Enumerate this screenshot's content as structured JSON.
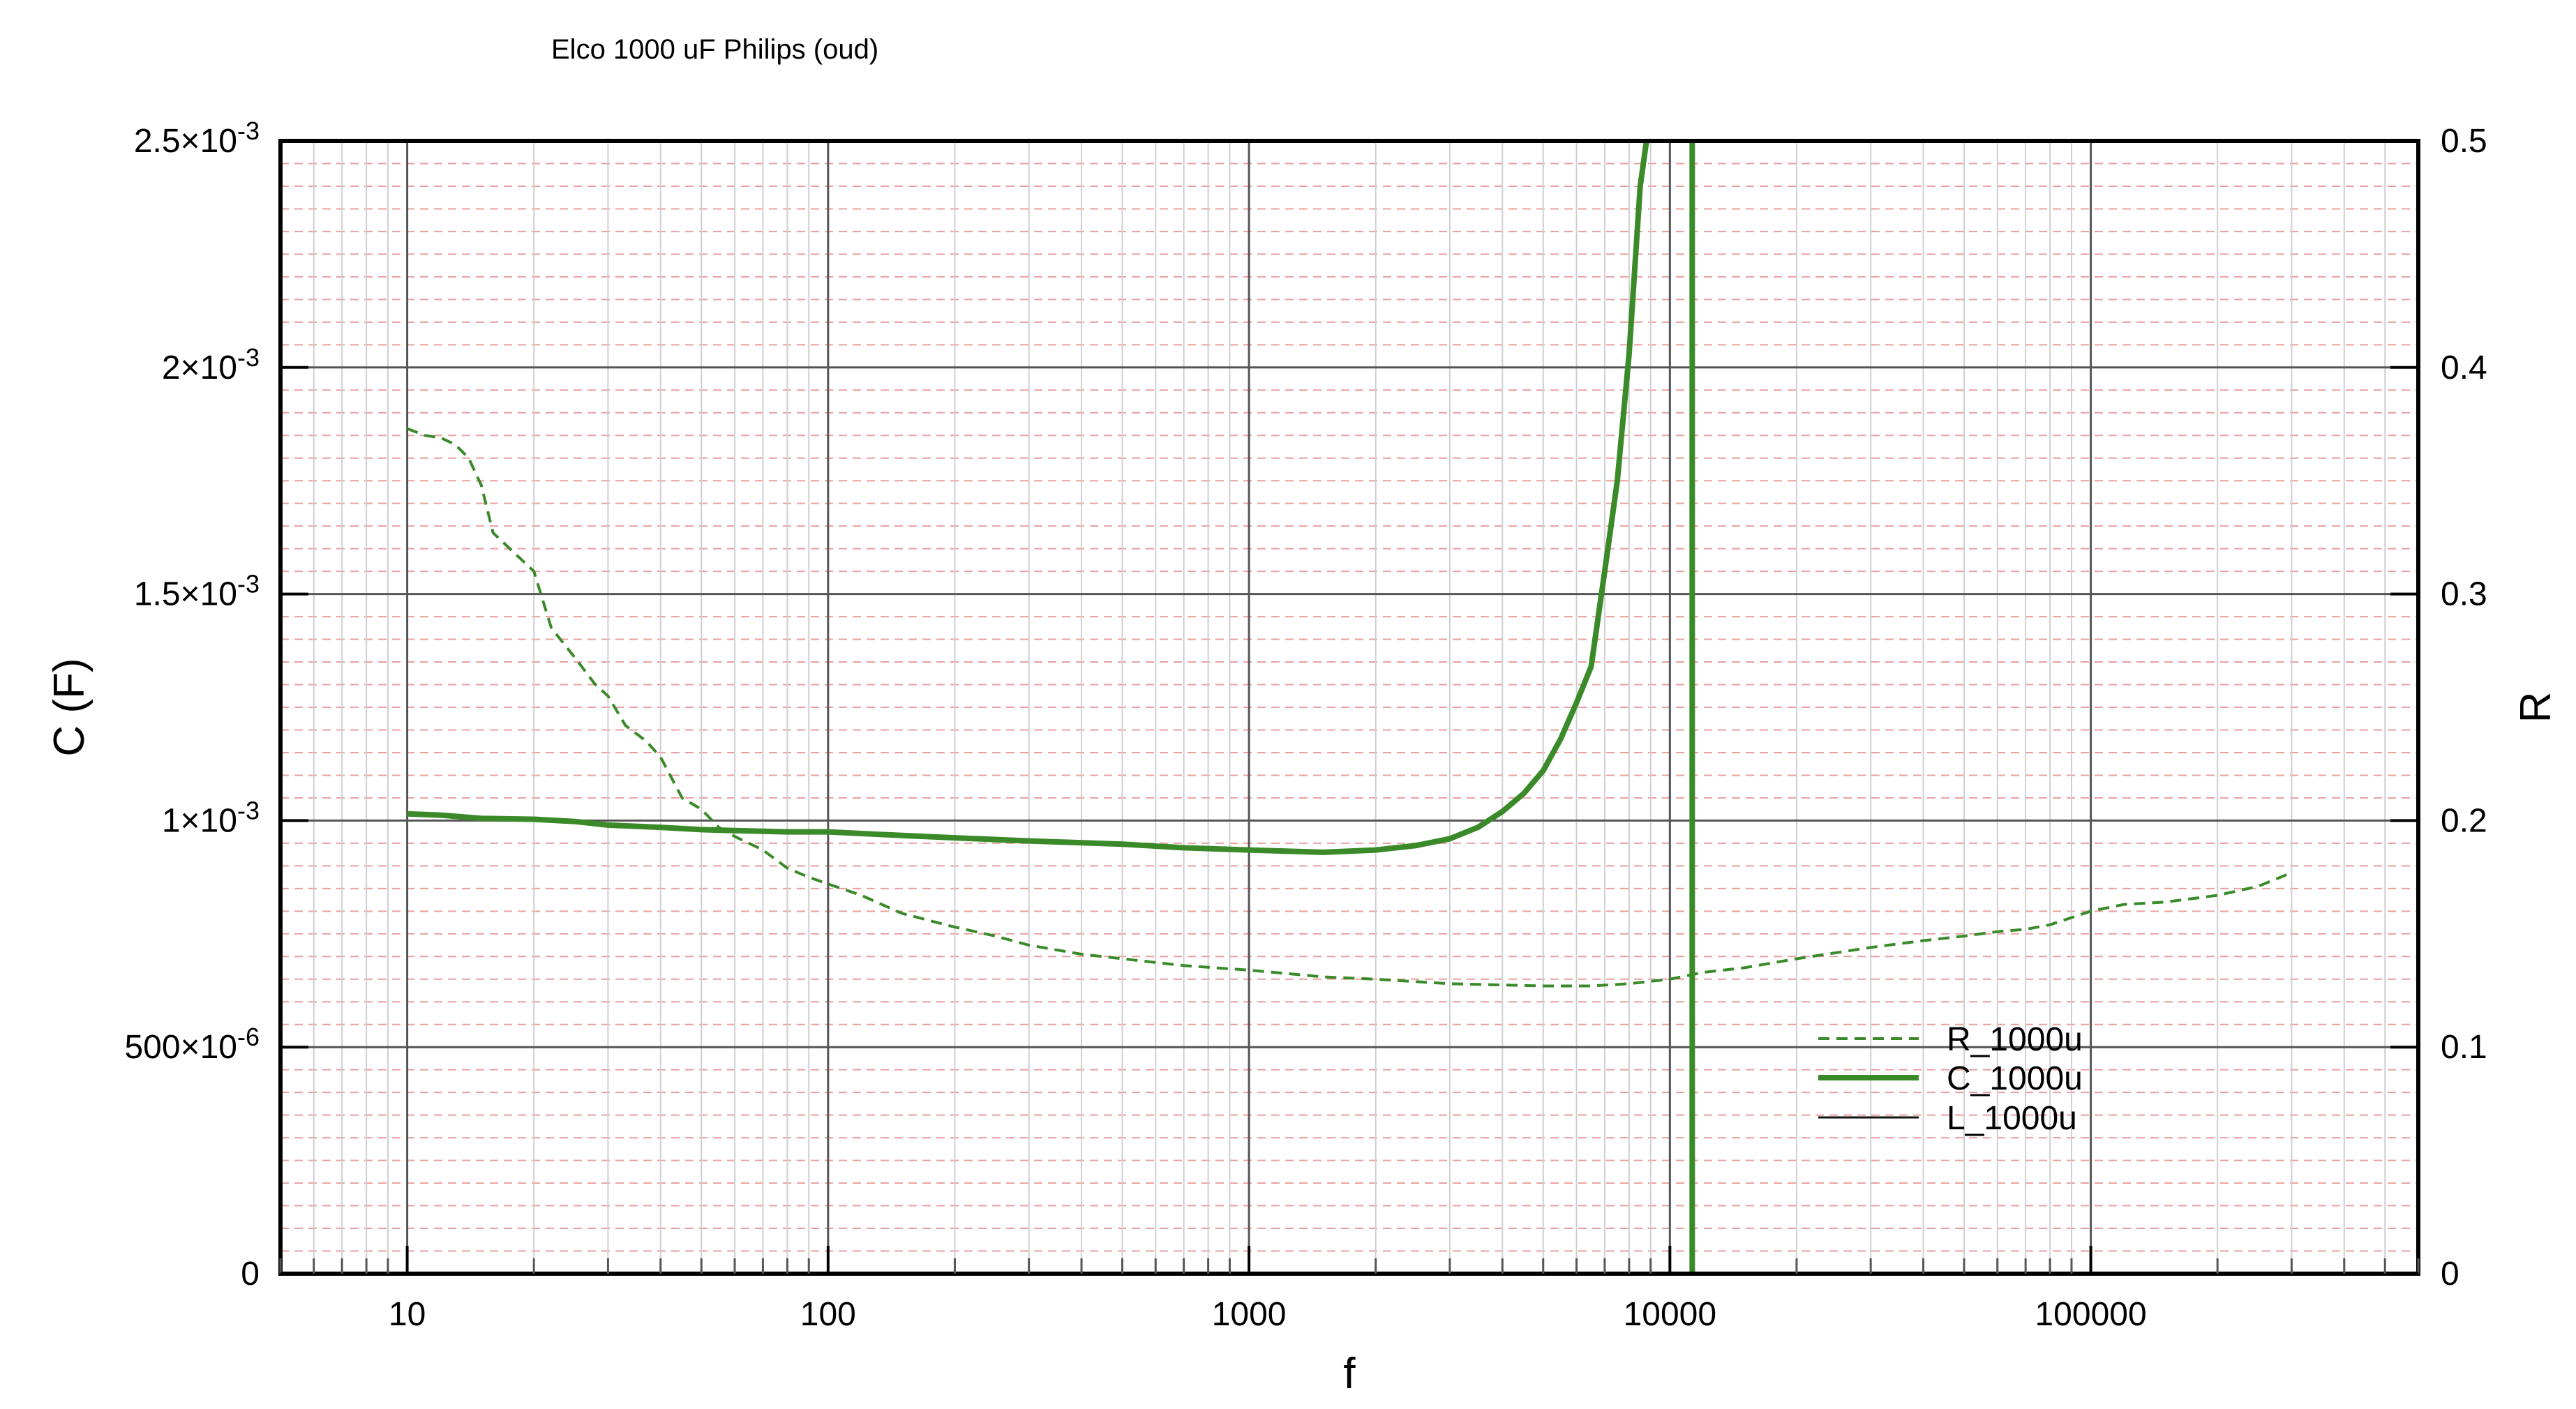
{
  "chart_data": {
    "type": "line",
    "title": "Elco 1000 uF Philips (oud)",
    "xlabel": "f",
    "ylabel": "C (F)",
    "y2label": "R",
    "x_scale": "log",
    "xlim": [
      5,
      600000
    ],
    "ylim": [
      0,
      0.0025
    ],
    "y2lim": [
      0,
      0.5
    ],
    "x_tick_labels": [
      "10",
      "100",
      "1000",
      "10000",
      "100000"
    ],
    "y_tick_labels": [
      {
        "base": "0",
        "exp": ""
      },
      {
        "base": "500×10",
        "exp": "-6"
      },
      {
        "base": "1×10",
        "exp": "-3"
      },
      {
        "base": "1.5×10",
        "exp": "-3"
      },
      {
        "base": "2×10",
        "exp": "-3"
      },
      {
        "base": "2.5×10",
        "exp": "-3"
      }
    ],
    "y2_tick_labels": [
      "0",
      "0.1",
      "0.2",
      "0.3",
      "0.4",
      "0.5"
    ],
    "grid": true,
    "legend_position": "bottom-right",
    "series": [
      {
        "name": "R_1000u",
        "axis": "right",
        "style": "dashed",
        "color": "#3a8a2a",
        "x": [
          10,
          11,
          12,
          13,
          14,
          15,
          16,
          18,
          20,
          22,
          25,
          28,
          30,
          33,
          37,
          40,
          45,
          50,
          55,
          60,
          70,
          80,
          90,
          100,
          120,
          150,
          200,
          250,
          300,
          400,
          500,
          700,
          1000,
          1500,
          2000,
          3000,
          5000,
          6500,
          8000,
          10000,
          12000,
          15000,
          20000,
          30000,
          40000,
          50000,
          60000,
          70000,
          80000,
          100000,
          120000,
          150000,
          200000,
          250000,
          300000
        ],
        "y": [
          0.373,
          0.37,
          0.369,
          0.366,
          0.36,
          0.348,
          0.327,
          0.318,
          0.31,
          0.285,
          0.272,
          0.26,
          0.255,
          0.242,
          0.235,
          0.228,
          0.21,
          0.205,
          0.197,
          0.193,
          0.187,
          0.179,
          0.175,
          0.172,
          0.167,
          0.159,
          0.153,
          0.149,
          0.145,
          0.141,
          0.139,
          0.136,
          0.134,
          0.131,
          0.13,
          0.128,
          0.127,
          0.127,
          0.128,
          0.13,
          0.133,
          0.135,
          0.139,
          0.144,
          0.147,
          0.149,
          0.151,
          0.152,
          0.154,
          0.16,
          0.163,
          0.164,
          0.167,
          0.171,
          0.177
        ]
      },
      {
        "name": "C_1000u",
        "axis": "left",
        "style": "solid",
        "color": "#3a8a2a",
        "x": [
          10,
          12,
          15,
          20,
          25,
          30,
          40,
          50,
          60,
          80,
          100,
          150,
          200,
          300,
          500,
          700,
          1000,
          1500,
          2000,
          2500,
          3000,
          3500,
          4000,
          4500,
          5000,
          5500,
          6000,
          6500,
          7000,
          7500,
          8000,
          8500,
          8800
        ],
        "y": [
          0.001015,
          0.001012,
          0.001005,
          0.001003,
          0.000998,
          0.00099,
          0.000985,
          0.00098,
          0.000978,
          0.000975,
          0.000975,
          0.000967,
          0.000962,
          0.000955,
          0.000948,
          0.00094,
          0.000935,
          0.00093,
          0.000935,
          0.000945,
          0.00096,
          0.000985,
          0.00102,
          0.00106,
          0.00111,
          0.00118,
          0.00126,
          0.00134,
          0.00155,
          0.00175,
          0.00203,
          0.0024,
          0.0025
        ]
      },
      {
        "name": "L_1000u",
        "axis": "left",
        "style": "solid",
        "color": "#111111",
        "x": [],
        "y": []
      }
    ],
    "vertical_line": {
      "x": 11300,
      "color": "#3a8a2a"
    }
  }
}
